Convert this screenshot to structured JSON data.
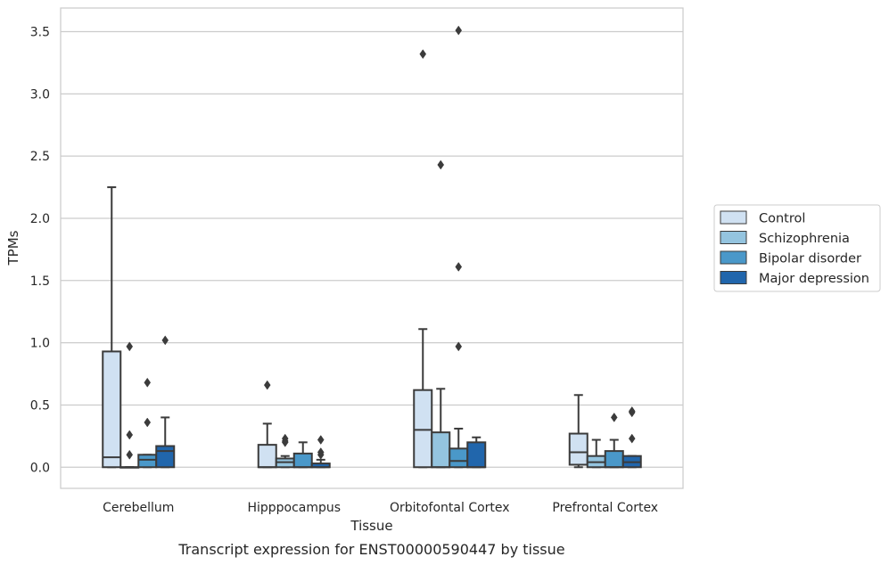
{
  "caption": "Transcript expression for ENST00000590447 by tissue",
  "chart_data": {
    "type": "box",
    "xlabel": "Tissue",
    "ylabel": "TPMs",
    "ylim": [
      -0.17,
      3.69
    ],
    "yticks": [
      0.0,
      0.5,
      1.0,
      1.5,
      2.0,
      2.5,
      3.0,
      3.5
    ],
    "ytick_labels": [
      "0.0",
      "0.5",
      "1.0",
      "1.5",
      "2.0",
      "2.5",
      "3.0",
      "3.5"
    ],
    "grid": "horizontal",
    "legend_position": "right",
    "categories": [
      "Cerebellum",
      "Hipppocampus",
      "Orbitofontal Cortex",
      "Prefrontal Cortex"
    ],
    "series": [
      {
        "name": "Control",
        "color": "#d0e1f2",
        "boxes": [
          {
            "whislo": 0.0,
            "q1": 0.0,
            "med": 0.08,
            "q3": 0.93,
            "whishi": 2.25,
            "fliers": []
          },
          {
            "whislo": 0.0,
            "q1": 0.0,
            "med": 0.0,
            "q3": 0.18,
            "whishi": 0.35,
            "fliers": [
              0.66
            ]
          },
          {
            "whislo": 0.0,
            "q1": 0.0,
            "med": 0.3,
            "q3": 0.62,
            "whishi": 1.11,
            "fliers": [
              3.32
            ]
          },
          {
            "whislo": 0.0,
            "q1": 0.02,
            "med": 0.12,
            "q3": 0.27,
            "whishi": 0.58,
            "fliers": []
          }
        ]
      },
      {
        "name": "Schizophrenia",
        "color": "#94c4df",
        "boxes": [
          {
            "whislo": 0.0,
            "q1": 0.0,
            "med": 0.0,
            "q3": 0.0,
            "whishi": 0.0,
            "fliers": [
              0.97,
              0.26,
              0.1
            ]
          },
          {
            "whislo": 0.0,
            "q1": 0.0,
            "med": 0.04,
            "q3": 0.07,
            "whishi": 0.09,
            "fliers": [
              0.23,
              0.21,
              0.2
            ]
          },
          {
            "whislo": 0.0,
            "q1": 0.0,
            "med": 0.0,
            "q3": 0.28,
            "whishi": 0.63,
            "fliers": [
              2.43
            ]
          },
          {
            "whislo": 0.0,
            "q1": 0.0,
            "med": 0.04,
            "q3": 0.09,
            "whishi": 0.22,
            "fliers": []
          }
        ]
      },
      {
        "name": "Bipolar disorder",
        "color": "#4a98c9",
        "boxes": [
          {
            "whislo": 0.0,
            "q1": 0.0,
            "med": 0.06,
            "q3": 0.1,
            "whishi": 0.1,
            "fliers": [
              0.68,
              0.36
            ]
          },
          {
            "whislo": 0.0,
            "q1": 0.0,
            "med": 0.0,
            "q3": 0.11,
            "whishi": 0.2,
            "fliers": []
          },
          {
            "whislo": 0.0,
            "q1": 0.0,
            "med": 0.05,
            "q3": 0.15,
            "whishi": 0.31,
            "fliers": [
              3.51,
              1.61,
              0.97
            ]
          },
          {
            "whislo": 0.0,
            "q1": 0.0,
            "med": 0.0,
            "q3": 0.13,
            "whishi": 0.22,
            "fliers": [
              0.4
            ]
          }
        ]
      },
      {
        "name": "Major depression",
        "color": "#2166ac",
        "boxes": [
          {
            "whislo": 0.0,
            "q1": 0.0,
            "med": 0.13,
            "q3": 0.17,
            "whishi": 0.4,
            "fliers": [
              1.02
            ]
          },
          {
            "whislo": 0.0,
            "q1": 0.0,
            "med": 0.0,
            "q3": 0.03,
            "whishi": 0.06,
            "fliers": [
              0.22,
              0.12,
              0.1
            ]
          },
          {
            "whislo": 0.0,
            "q1": 0.0,
            "med": 0.0,
            "q3": 0.2,
            "whishi": 0.24,
            "fliers": []
          },
          {
            "whislo": 0.0,
            "q1": 0.0,
            "med": 0.04,
            "q3": 0.09,
            "whishi": 0.09,
            "fliers": [
              0.45,
              0.44,
              0.23
            ]
          }
        ]
      }
    ]
  }
}
